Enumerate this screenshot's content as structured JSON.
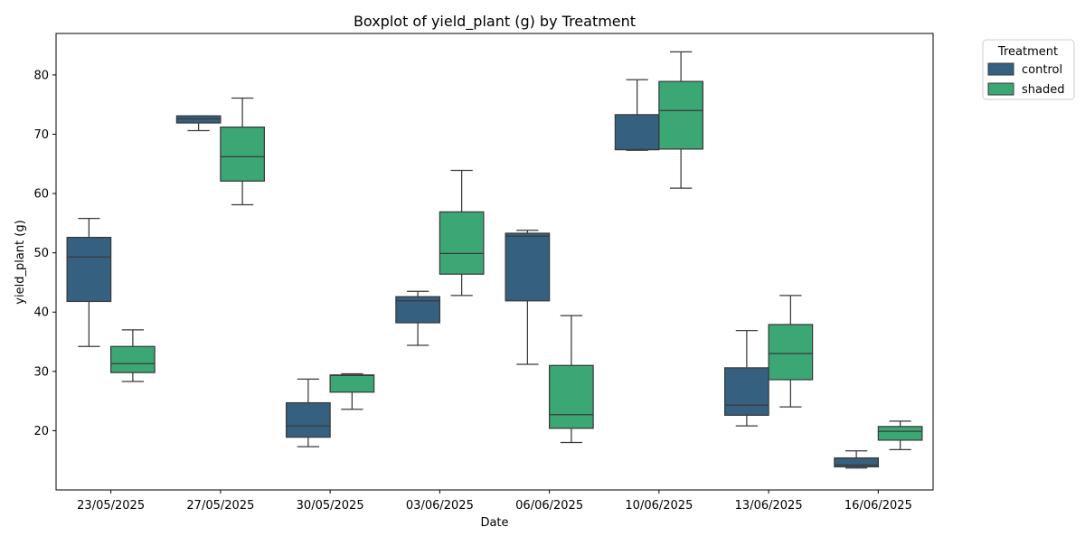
{
  "chart_data": {
    "type": "box",
    "title": "Boxplot of yield_plant (g) by Treatment",
    "xlabel": "Date",
    "ylabel": "yield_plant (g)",
    "ylim": [
      10,
      87
    ],
    "yticks": [
      20,
      30,
      40,
      50,
      60,
      70,
      80
    ],
    "grid": false,
    "legend": {
      "title": "Treatment",
      "placement": "outside-right-top"
    },
    "categories": [
      "23/05/2025",
      "27/05/2025",
      "30/05/2025",
      "03/06/2025",
      "06/06/2025",
      "10/06/2025",
      "13/06/2025",
      "16/06/2025"
    ],
    "series": [
      {
        "name": "control",
        "color": "#35607f",
        "boxes": [
          {
            "whisker_low": 34.2,
            "q1": 41.8,
            "median": 49.3,
            "q3": 52.6,
            "whisker_high": 55.8
          },
          {
            "whisker_low": 70.6,
            "q1": 71.9,
            "median": 72.6,
            "q3": 73.1,
            "whisker_high": 73.1
          },
          {
            "whisker_low": 17.3,
            "q1": 18.9,
            "median": 20.8,
            "q3": 24.7,
            "whisker_high": 28.7
          },
          {
            "whisker_low": 34.4,
            "q1": 38.2,
            "median": 41.9,
            "q3": 42.6,
            "whisker_high": 43.5
          },
          {
            "whisker_low": 31.2,
            "q1": 41.9,
            "median": 52.8,
            "q3": 53.3,
            "whisker_high": 53.8
          },
          {
            "whisker_low": 67.3,
            "q1": 67.4,
            "median": 67.4,
            "q3": 73.3,
            "whisker_high": 79.2
          },
          {
            "whisker_low": 20.8,
            "q1": 22.6,
            "median": 24.3,
            "q3": 30.6,
            "whisker_high": 36.9
          },
          {
            "whisker_low": 13.7,
            "q1": 13.9,
            "median": 14.2,
            "q3": 15.4,
            "whisker_high": 16.6
          }
        ]
      },
      {
        "name": "shaded",
        "color": "#3aa775",
        "boxes": [
          {
            "whisker_low": 28.3,
            "q1": 29.8,
            "median": 31.3,
            "q3": 34.2,
            "whisker_high": 37.0
          },
          {
            "whisker_low": 58.1,
            "q1": 62.1,
            "median": 66.2,
            "q3": 71.2,
            "whisker_high": 76.1
          },
          {
            "whisker_low": 23.6,
            "q1": 26.5,
            "median": 29.3,
            "q3": 29.4,
            "whisker_high": 29.6
          },
          {
            "whisker_low": 42.8,
            "q1": 46.4,
            "median": 49.9,
            "q3": 56.9,
            "whisker_high": 63.9
          },
          {
            "whisker_low": 18.0,
            "q1": 20.4,
            "median": 22.7,
            "q3": 31.0,
            "whisker_high": 39.4
          },
          {
            "whisker_low": 60.9,
            "q1": 67.5,
            "median": 74.0,
            "q3": 78.9,
            "whisker_high": 83.9
          },
          {
            "whisker_low": 24.0,
            "q1": 28.6,
            "median": 33.0,
            "q3": 37.9,
            "whisker_high": 42.8
          },
          {
            "whisker_low": 16.8,
            "q1": 18.4,
            "median": 19.9,
            "q3": 20.7,
            "whisker_high": 21.6
          }
        ]
      }
    ]
  }
}
